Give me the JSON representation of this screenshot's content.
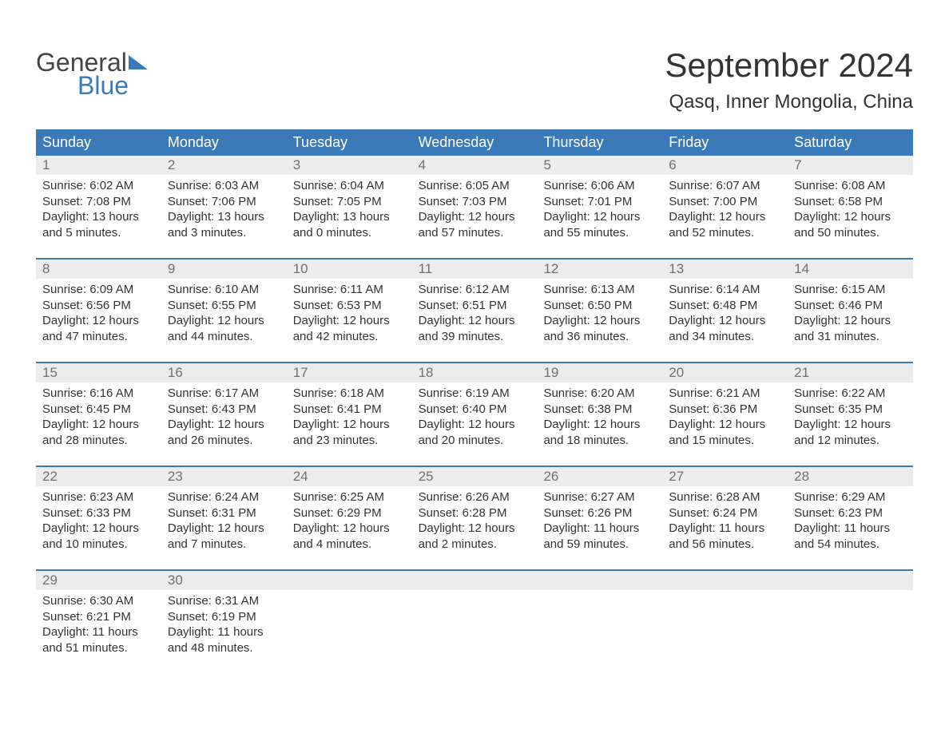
{
  "brand": {
    "line1": "General",
    "line2": "Blue",
    "accent_color": "#3b7ab8"
  },
  "title": "September 2024",
  "location": "Qasq, Inner Mongolia, China",
  "colors": {
    "header_bg": "#3b7ab8",
    "header_text": "#ffffff",
    "daynum_bg": "#ececec",
    "daynum_text": "#707070",
    "body_text": "#333333",
    "week_border": "#3b7ab8",
    "page_bg": "#ffffff"
  },
  "typography": {
    "title_fontsize": 42,
    "location_fontsize": 24,
    "dayheader_fontsize": 18,
    "daynum_fontsize": 17,
    "body_fontsize": 15
  },
  "day_headers": [
    "Sunday",
    "Monday",
    "Tuesday",
    "Wednesday",
    "Thursday",
    "Friday",
    "Saturday"
  ],
  "weeks": [
    [
      {
        "num": "1",
        "sunrise": "Sunrise: 6:02 AM",
        "sunset": "Sunset: 7:08 PM",
        "day1": "Daylight: 13 hours",
        "day2": "and 5 minutes."
      },
      {
        "num": "2",
        "sunrise": "Sunrise: 6:03 AM",
        "sunset": "Sunset: 7:06 PM",
        "day1": "Daylight: 13 hours",
        "day2": "and 3 minutes."
      },
      {
        "num": "3",
        "sunrise": "Sunrise: 6:04 AM",
        "sunset": "Sunset: 7:05 PM",
        "day1": "Daylight: 13 hours",
        "day2": "and 0 minutes."
      },
      {
        "num": "4",
        "sunrise": "Sunrise: 6:05 AM",
        "sunset": "Sunset: 7:03 PM",
        "day1": "Daylight: 12 hours",
        "day2": "and 57 minutes."
      },
      {
        "num": "5",
        "sunrise": "Sunrise: 6:06 AM",
        "sunset": "Sunset: 7:01 PM",
        "day1": "Daylight: 12 hours",
        "day2": "and 55 minutes."
      },
      {
        "num": "6",
        "sunrise": "Sunrise: 6:07 AM",
        "sunset": "Sunset: 7:00 PM",
        "day1": "Daylight: 12 hours",
        "day2": "and 52 minutes."
      },
      {
        "num": "7",
        "sunrise": "Sunrise: 6:08 AM",
        "sunset": "Sunset: 6:58 PM",
        "day1": "Daylight: 12 hours",
        "day2": "and 50 minutes."
      }
    ],
    [
      {
        "num": "8",
        "sunrise": "Sunrise: 6:09 AM",
        "sunset": "Sunset: 6:56 PM",
        "day1": "Daylight: 12 hours",
        "day2": "and 47 minutes."
      },
      {
        "num": "9",
        "sunrise": "Sunrise: 6:10 AM",
        "sunset": "Sunset: 6:55 PM",
        "day1": "Daylight: 12 hours",
        "day2": "and 44 minutes."
      },
      {
        "num": "10",
        "sunrise": "Sunrise: 6:11 AM",
        "sunset": "Sunset: 6:53 PM",
        "day1": "Daylight: 12 hours",
        "day2": "and 42 minutes."
      },
      {
        "num": "11",
        "sunrise": "Sunrise: 6:12 AM",
        "sunset": "Sunset: 6:51 PM",
        "day1": "Daylight: 12 hours",
        "day2": "and 39 minutes."
      },
      {
        "num": "12",
        "sunrise": "Sunrise: 6:13 AM",
        "sunset": "Sunset: 6:50 PM",
        "day1": "Daylight: 12 hours",
        "day2": "and 36 minutes."
      },
      {
        "num": "13",
        "sunrise": "Sunrise: 6:14 AM",
        "sunset": "Sunset: 6:48 PM",
        "day1": "Daylight: 12 hours",
        "day2": "and 34 minutes."
      },
      {
        "num": "14",
        "sunrise": "Sunrise: 6:15 AM",
        "sunset": "Sunset: 6:46 PM",
        "day1": "Daylight: 12 hours",
        "day2": "and 31 minutes."
      }
    ],
    [
      {
        "num": "15",
        "sunrise": "Sunrise: 6:16 AM",
        "sunset": "Sunset: 6:45 PM",
        "day1": "Daylight: 12 hours",
        "day2": "and 28 minutes."
      },
      {
        "num": "16",
        "sunrise": "Sunrise: 6:17 AM",
        "sunset": "Sunset: 6:43 PM",
        "day1": "Daylight: 12 hours",
        "day2": "and 26 minutes."
      },
      {
        "num": "17",
        "sunrise": "Sunrise: 6:18 AM",
        "sunset": "Sunset: 6:41 PM",
        "day1": "Daylight: 12 hours",
        "day2": "and 23 minutes."
      },
      {
        "num": "18",
        "sunrise": "Sunrise: 6:19 AM",
        "sunset": "Sunset: 6:40 PM",
        "day1": "Daylight: 12 hours",
        "day2": "and 20 minutes."
      },
      {
        "num": "19",
        "sunrise": "Sunrise: 6:20 AM",
        "sunset": "Sunset: 6:38 PM",
        "day1": "Daylight: 12 hours",
        "day2": "and 18 minutes."
      },
      {
        "num": "20",
        "sunrise": "Sunrise: 6:21 AM",
        "sunset": "Sunset: 6:36 PM",
        "day1": "Daylight: 12 hours",
        "day2": "and 15 minutes."
      },
      {
        "num": "21",
        "sunrise": "Sunrise: 6:22 AM",
        "sunset": "Sunset: 6:35 PM",
        "day1": "Daylight: 12 hours",
        "day2": "and 12 minutes."
      }
    ],
    [
      {
        "num": "22",
        "sunrise": "Sunrise: 6:23 AM",
        "sunset": "Sunset: 6:33 PM",
        "day1": "Daylight: 12 hours",
        "day2": "and 10 minutes."
      },
      {
        "num": "23",
        "sunrise": "Sunrise: 6:24 AM",
        "sunset": "Sunset: 6:31 PM",
        "day1": "Daylight: 12 hours",
        "day2": "and 7 minutes."
      },
      {
        "num": "24",
        "sunrise": "Sunrise: 6:25 AM",
        "sunset": "Sunset: 6:29 PM",
        "day1": "Daylight: 12 hours",
        "day2": "and 4 minutes."
      },
      {
        "num": "25",
        "sunrise": "Sunrise: 6:26 AM",
        "sunset": "Sunset: 6:28 PM",
        "day1": "Daylight: 12 hours",
        "day2": "and 2 minutes."
      },
      {
        "num": "26",
        "sunrise": "Sunrise: 6:27 AM",
        "sunset": "Sunset: 6:26 PM",
        "day1": "Daylight: 11 hours",
        "day2": "and 59 minutes."
      },
      {
        "num": "27",
        "sunrise": "Sunrise: 6:28 AM",
        "sunset": "Sunset: 6:24 PM",
        "day1": "Daylight: 11 hours",
        "day2": "and 56 minutes."
      },
      {
        "num": "28",
        "sunrise": "Sunrise: 6:29 AM",
        "sunset": "Sunset: 6:23 PM",
        "day1": "Daylight: 11 hours",
        "day2": "and 54 minutes."
      }
    ],
    [
      {
        "num": "29",
        "sunrise": "Sunrise: 6:30 AM",
        "sunset": "Sunset: 6:21 PM",
        "day1": "Daylight: 11 hours",
        "day2": "and 51 minutes."
      },
      {
        "num": "30",
        "sunrise": "Sunrise: 6:31 AM",
        "sunset": "Sunset: 6:19 PM",
        "day1": "Daylight: 11 hours",
        "day2": "and 48 minutes."
      },
      null,
      null,
      null,
      null,
      null
    ]
  ]
}
